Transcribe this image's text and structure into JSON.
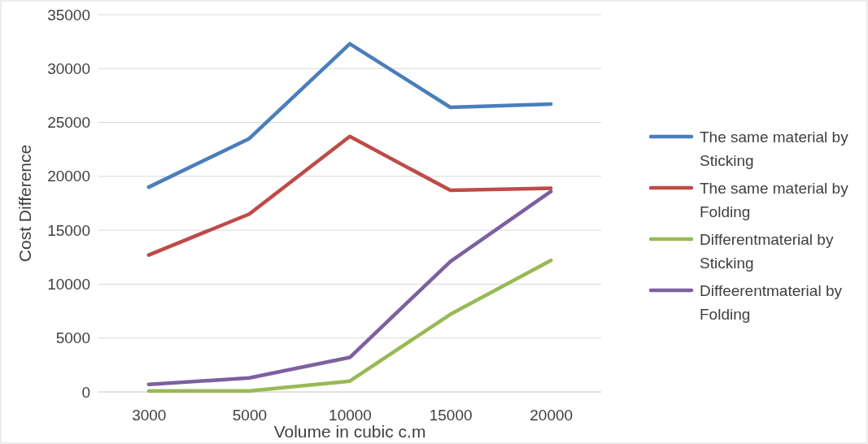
{
  "chart_data": {
    "type": "line",
    "xlabel": "Volume in cubic c.m",
    "ylabel": "Cost Difference",
    "categories": [
      "3000",
      "5000",
      "10000",
      "15000",
      "20000"
    ],
    "ylim": [
      0,
      35000
    ],
    "yticks": [
      0,
      5000,
      10000,
      15000,
      20000,
      25000,
      30000,
      35000
    ],
    "grid": "y",
    "legend": "right",
    "marker": "none",
    "line_style": "solid",
    "series": [
      {
        "name": "The same material by Sticking",
        "color": "#4a7ebb",
        "values": [
          19000,
          23500,
          32300,
          26400,
          26700
        ]
      },
      {
        "name": "The same material by Folding",
        "color": "#be4b48",
        "values": [
          12700,
          16500,
          23700,
          18700,
          18900
        ]
      },
      {
        "name": "Differentmaterial by Sticking",
        "color": "#98b954",
        "values": [
          100,
          100,
          1000,
          7200,
          12200
        ]
      },
      {
        "name": "Diffeerentmaterial by Folding",
        "color": "#7d60a0",
        "values": [
          700,
          1300,
          3200,
          12100,
          18600
        ]
      }
    ]
  }
}
